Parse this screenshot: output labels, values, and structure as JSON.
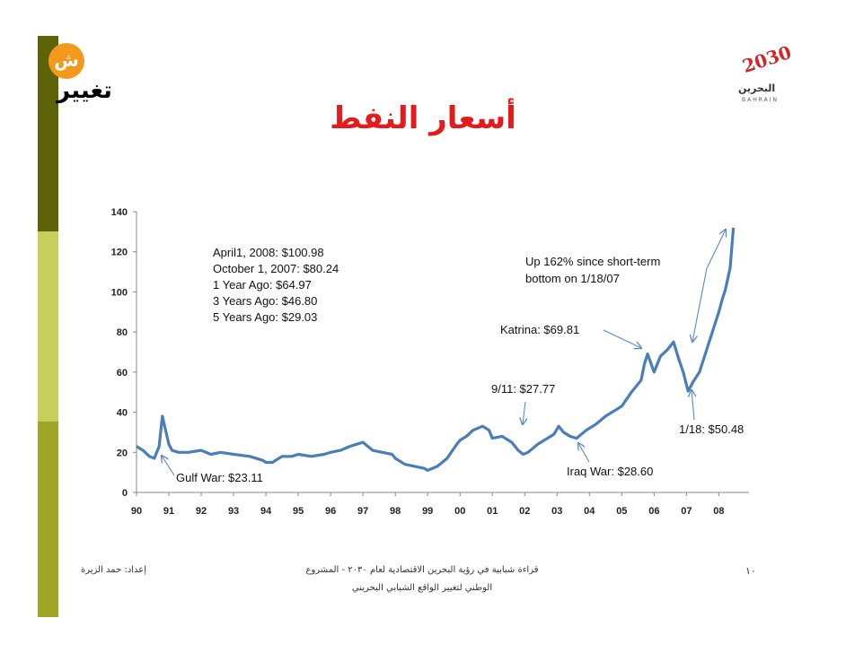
{
  "slide": {
    "title": "أسعار النفط",
    "footer_left": "إعداد: حمد الزيرة",
    "footer_center_line1": "قراءة شبابية في رؤية البحرين الاقتصادية لعام ٢٠٣٠ - المشروع",
    "footer_center_line2": "الوطني لتغيير الواقع الشبابي البحريني",
    "page_number": "١٠",
    "logo_left_text": "تغيير",
    "logo_left_badge": "ش",
    "logo_right_year": "2030",
    "logo_right_ar": "البحرين",
    "logo_right_en": "BAHRAIN"
  },
  "colors": {
    "title": "#e31b1b",
    "sidebar_dark": "#5e6209",
    "sidebar_light": "#c7cf5c",
    "sidebar_olive": "#9ea423",
    "line": "#4a7ebb",
    "annotation_arrow": "#5a8ac8",
    "logo_orange": "#f39a1e",
    "logo_red": "#d3262a"
  },
  "chart_data": {
    "type": "line",
    "title": "",
    "xlabel": "",
    "ylabel": "",
    "xlim": [
      1990,
      2008.6
    ],
    "ylim": [
      0,
      140
    ],
    "yticks": [
      0,
      20,
      40,
      60,
      80,
      100,
      120,
      140
    ],
    "xtick_labels": [
      "90",
      "91",
      "92",
      "93",
      "94",
      "95",
      "96",
      "97",
      "98",
      "99",
      "00",
      "01",
      "02",
      "03",
      "04",
      "05",
      "06",
      "07",
      "08"
    ],
    "grid": false,
    "series": [
      {
        "x": [
          1990.0,
          1990.2,
          1990.4,
          1990.55,
          1990.7,
          1990.8,
          1990.9,
          1991.0,
          1991.1,
          1991.3,
          1991.6,
          1992.0,
          1992.3,
          1992.6,
          1993.0,
          1993.5,
          1993.9,
          1994.0,
          1994.2,
          1994.5,
          1994.8,
          1995.0,
          1995.4,
          1995.8,
          1996.0,
          1996.3,
          1996.6,
          1996.8,
          1997.0,
          1997.3,
          1997.6,
          1997.9,
          1998.0,
          1998.3,
          1998.6,
          1998.9,
          1999.0,
          1999.3,
          1999.6,
          1999.9,
          2000.0,
          2000.2,
          2000.4,
          2000.7,
          2000.9,
          2001.0,
          2001.3,
          2001.6,
          2001.8,
          2001.95,
          2002.1,
          2002.4,
          2002.7,
          2002.9,
          2003.05,
          2003.2,
          2003.4,
          2003.6,
          2003.9,
          2004.2,
          2004.5,
          2004.8,
          2005.0,
          2005.3,
          2005.6,
          2005.7,
          2005.8,
          2006.0,
          2006.2,
          2006.4,
          2006.6,
          2006.75,
          2006.9,
          2007.05,
          2007.2,
          2007.4,
          2007.6,
          2007.8,
          2008.0,
          2008.1,
          2008.2,
          2008.35,
          2008.45
        ],
        "y": [
          23,
          21,
          18,
          17,
          23,
          38,
          31,
          24,
          21,
          20,
          20,
          21,
          19,
          20,
          19,
          18,
          16,
          15,
          15,
          18,
          18,
          19,
          18,
          19,
          20,
          21,
          23,
          24,
          25,
          21,
          20,
          19,
          17,
          14,
          13,
          12,
          11,
          13,
          17,
          24,
          26,
          28,
          31,
          33,
          31,
          27,
          28,
          25,
          21,
          19,
          20,
          24,
          27,
          29,
          33,
          30,
          28,
          27,
          31,
          34,
          38,
          41,
          43,
          50,
          56,
          64,
          69,
          60,
          68,
          71,
          75,
          67,
          60,
          50.48,
          55,
          60,
          70,
          80,
          90,
          96,
          100.98,
          112,
          132
        ]
      }
    ],
    "annotations": [
      {
        "text": "April1, 2008: $100.98"
      },
      {
        "text": "October 1, 2007: $80.24"
      },
      {
        "text": "1 Year Ago: $64.97"
      },
      {
        "text": "3 Years Ago: $46.80"
      },
      {
        "text": "5 Years Ago: $29.03"
      },
      {
        "text": "Up 162% since short-term"
      },
      {
        "text": "bottom on 1/18/07"
      },
      {
        "text": "Katrina: $69.81"
      },
      {
        "text": "9/11: $27.77"
      },
      {
        "text": "1/18: $50.48"
      },
      {
        "text": "Iraq War: $28.60"
      },
      {
        "text": "Gulf War: $23.11"
      }
    ]
  }
}
